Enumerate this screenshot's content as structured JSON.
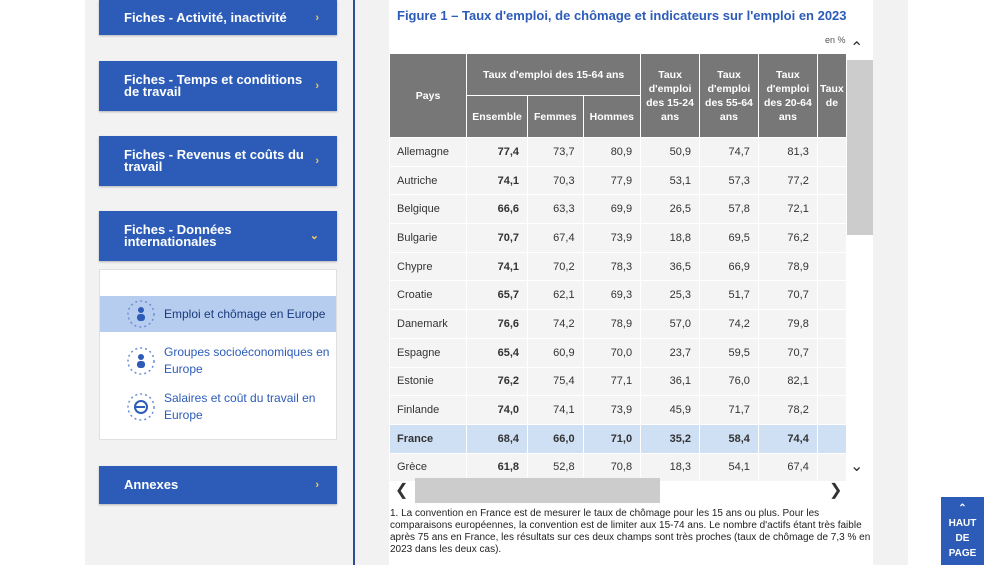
{
  "sidebar": {
    "items": [
      {
        "label": "Fiches - Activité, inactivité"
      },
      {
        "label": "Fiches - Temps et conditions de travail"
      },
      {
        "label": "Fiches - Revenus et coûts du travail"
      },
      {
        "label": "Fiches - Données internationales"
      },
      {
        "label": "Annexes"
      }
    ],
    "sub_items": [
      {
        "label": "Emploi et chômage en Europe"
      },
      {
        "label": "Groupes socioéconomiques en Europe"
      },
      {
        "label": "Salaires et coût du travail en Europe"
      }
    ]
  },
  "figure": {
    "title": "Figure 1 – Taux d'emploi, de chômage et indicateurs sur l'emploi en 2023",
    "unit": "en %",
    "headers": {
      "pays": "Pays",
      "group": "Taux d'emploi des 15-64 ans",
      "ensemble": "Ensemble",
      "femmes": "Femmes",
      "hommes": "Hommes",
      "c1": "Taux d'emploi des 15-24 ans",
      "c2": "Taux d'emploi des 55-64 ans",
      "c3": "Taux d'emploi des 20-64 ans",
      "c4": "Taux de"
    },
    "rows": [
      [
        "Allemagne",
        "77,4",
        "73,7",
        "80,9",
        "50,9",
        "74,7",
        "81,3"
      ],
      [
        "Autriche",
        "74,1",
        "70,3",
        "77,9",
        "53,1",
        "57,3",
        "77,2"
      ],
      [
        "Belgique",
        "66,6",
        "63,3",
        "69,9",
        "26,5",
        "57,8",
        "72,1"
      ],
      [
        "Bulgarie",
        "70,7",
        "67,4",
        "73,9",
        "18,8",
        "69,5",
        "76,2"
      ],
      [
        "Chypre",
        "74,1",
        "70,2",
        "78,3",
        "36,5",
        "66,9",
        "78,9"
      ],
      [
        "Croatie",
        "65,7",
        "62,1",
        "69,3",
        "25,3",
        "51,7",
        "70,7"
      ],
      [
        "Danemark",
        "76,6",
        "74,2",
        "78,9",
        "57,0",
        "74,2",
        "79,8"
      ],
      [
        "Espagne",
        "65,4",
        "60,9",
        "70,0",
        "23,7",
        "59,5",
        "70,7"
      ],
      [
        "Estonie",
        "76,2",
        "75,4",
        "77,1",
        "36,1",
        "76,0",
        "82,1"
      ],
      [
        "Finlande",
        "74,0",
        "74,1",
        "73,9",
        "45,9",
        "71,7",
        "78,2"
      ],
      [
        "France",
        "68,4",
        "66,0",
        "71,0",
        "35,2",
        "58,4",
        "74,4"
      ],
      [
        "Grèce",
        "61,8",
        "52,8",
        "70,8",
        "18,3",
        "54,1",
        "67,4"
      ]
    ],
    "highlight_row": "France",
    "note": "1. La convention en France est de mesurer le taux de chômage pour les 15 ans ou plus. Pour les comparaisons européennes, la convention est de limiter aux 15-74 ans. Le nombre d'actifs étant très faible après 75 ans en France, les résultats sur ces deux champs sont très proches (taux de chômage de 7,3 % en 2023 dans les deux cas)."
  },
  "back_to_top": {
    "line1": "HAUT",
    "line2": "DE",
    "line3": "PAGE"
  },
  "colors": {
    "accent": "#2c5cb8",
    "chevron": "#f4c95d",
    "highlight": "#cfe0f5"
  }
}
